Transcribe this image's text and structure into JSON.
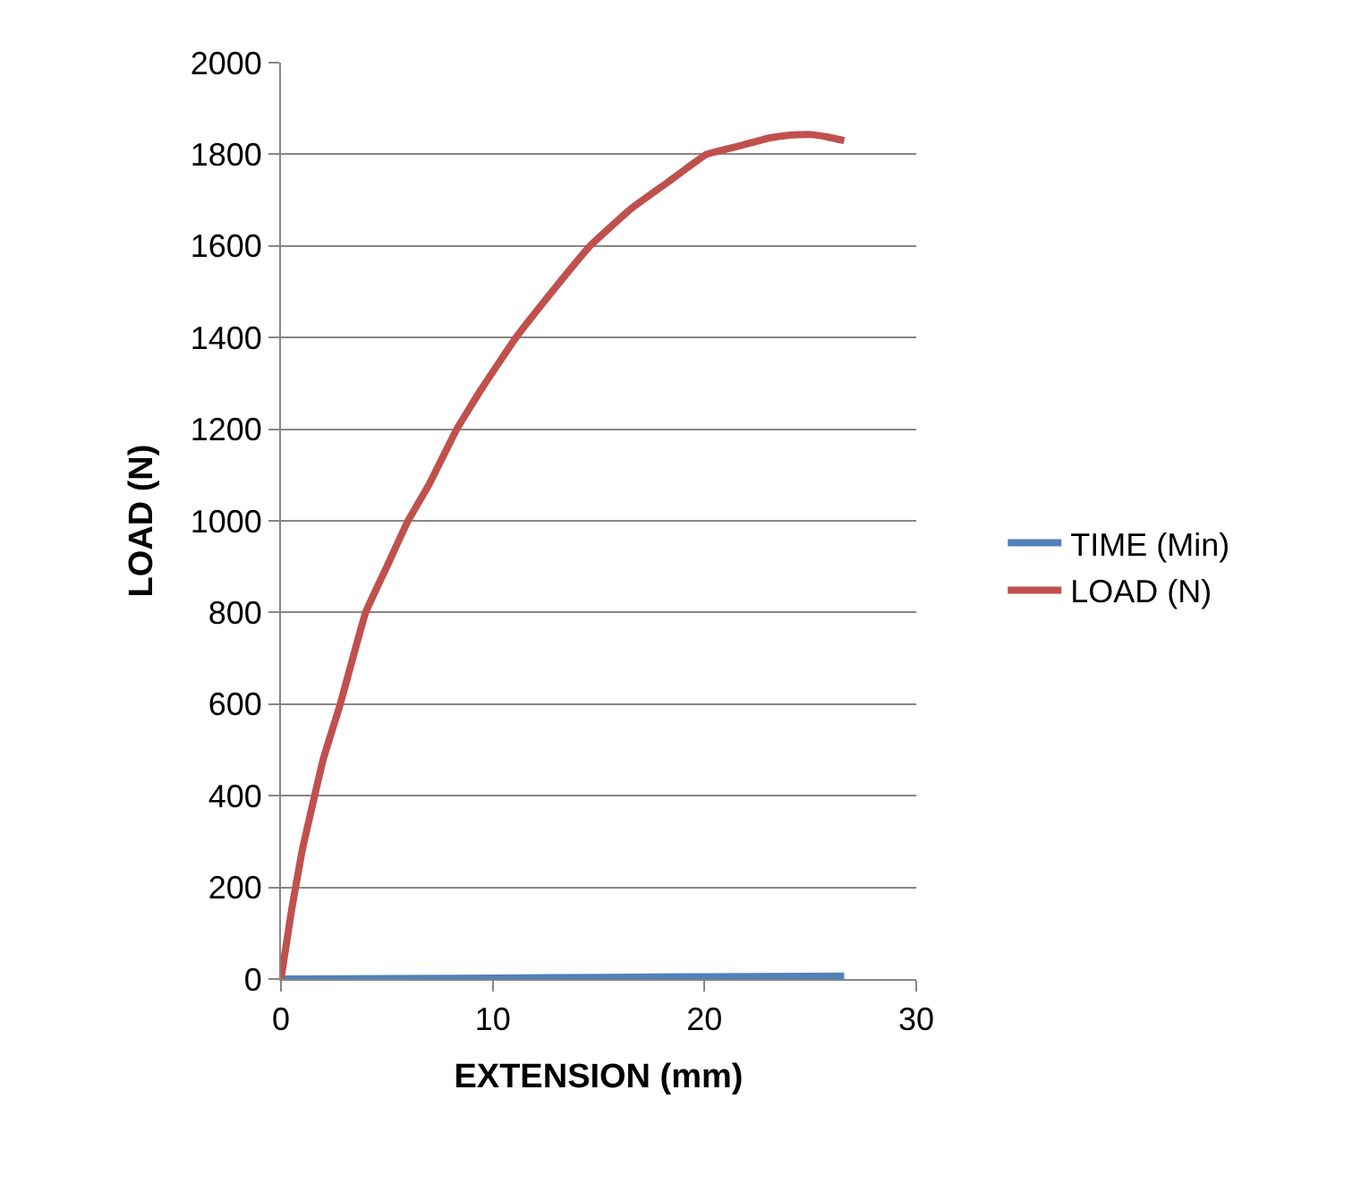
{
  "chart_data": {
    "type": "line",
    "xlabel": "EXTENSION (mm)",
    "ylabel": "LOAD (N)",
    "xlim": [
      0,
      30
    ],
    "xticks": [
      0,
      10,
      20,
      30
    ],
    "ylim": [
      0,
      2000
    ],
    "yticks": [
      0,
      200,
      400,
      600,
      800,
      1000,
      1200,
      1400,
      1600,
      1800,
      2000
    ],
    "grid": "y",
    "legend": "right",
    "marker": "none",
    "line_style": "solid",
    "series": [
      {
        "name": "TIME (Min)",
        "color": "#4f81bd",
        "x": [
          0,
          5,
          10,
          15,
          20,
          26.6
        ],
        "values": [
          0,
          1,
          2,
          3.5,
          5,
          6.5
        ]
      },
      {
        "name": "LOAD (N)",
        "color": "#c0504d",
        "x": [
          0,
          0.5,
          1,
          2,
          2.8,
          4,
          5,
          6,
          7,
          8.3,
          9.5,
          11.1,
          12.8,
          14.6,
          16.5,
          18.3,
          20.1,
          21.8,
          23,
          24,
          25,
          25.8,
          26.6
        ],
        "values": [
          0,
          150,
          280,
          480,
          600,
          800,
          900,
          1000,
          1080,
          1200,
          1290,
          1400,
          1500,
          1600,
          1680,
          1740,
          1800,
          1820,
          1835,
          1842,
          1843,
          1838,
          1830
        ]
      }
    ]
  }
}
